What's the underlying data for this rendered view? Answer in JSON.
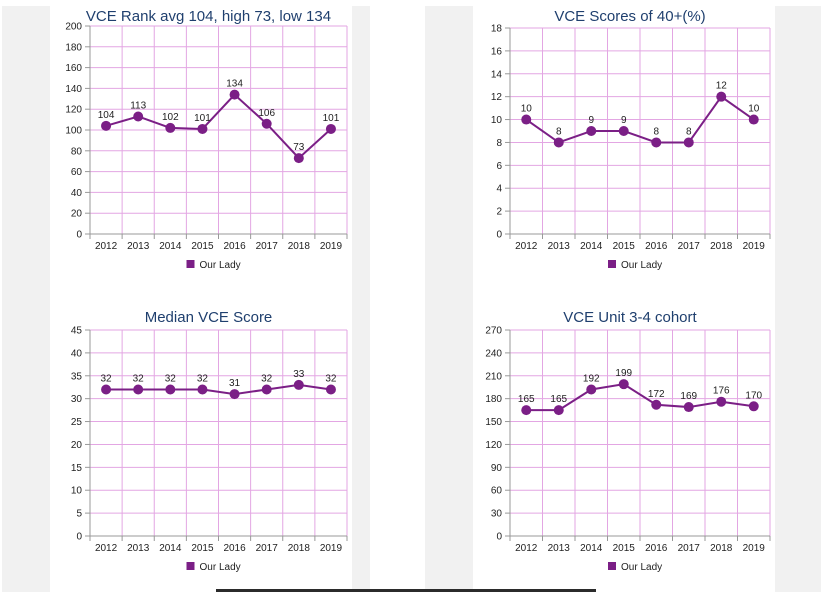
{
  "top_strip_text": "",
  "colors": {
    "line": "#7b1f86",
    "grid": "#e3a6e3",
    "axis": "#999999",
    "title": "#1f3f6e"
  },
  "chart_data": [
    {
      "type": "line",
      "title": "VCE Rank avg 104, high 73, low 134",
      "categories": [
        "2012",
        "2013",
        "2014",
        "2015",
        "2016",
        "2017",
        "2018",
        "2019"
      ],
      "series": [
        {
          "name": "Our Lady",
          "values": [
            104,
            113,
            102,
            101,
            134,
            106,
            73,
            101
          ]
        }
      ],
      "ylim": [
        0,
        200
      ],
      "yticks": [
        0,
        20,
        40,
        60,
        80,
        100,
        120,
        140,
        160,
        180,
        200
      ],
      "grid": true,
      "legend": "bottom"
    },
    {
      "type": "line",
      "title": "VCE Scores of 40+(%)",
      "categories": [
        "2012",
        "2013",
        "2014",
        "2015",
        "2016",
        "2017",
        "2018",
        "2019"
      ],
      "series": [
        {
          "name": "Our Lady",
          "values": [
            10,
            8,
            9,
            9,
            8,
            8,
            12,
            10
          ]
        }
      ],
      "ylim": [
        0,
        18
      ],
      "yticks": [
        0,
        2,
        4,
        6,
        8,
        10,
        12,
        14,
        16,
        18
      ],
      "grid": true,
      "legend": "bottom"
    },
    {
      "type": "line",
      "title": "Median VCE Score",
      "categories": [
        "2012",
        "2013",
        "2014",
        "2015",
        "2016",
        "2017",
        "2018",
        "2019"
      ],
      "series": [
        {
          "name": "Our Lady",
          "values": [
            32,
            32,
            32,
            32,
            31,
            32,
            33,
            32
          ]
        }
      ],
      "ylim": [
        0,
        45
      ],
      "yticks": [
        0,
        5,
        10,
        15,
        20,
        25,
        30,
        35,
        40,
        45
      ],
      "grid": true,
      "legend": "bottom"
    },
    {
      "type": "line",
      "title": "VCE Unit 3-4 cohort",
      "categories": [
        "2012",
        "2013",
        "2014",
        "2015",
        "2016",
        "2017",
        "2018",
        "2019"
      ],
      "series": [
        {
          "name": "Our Lady",
          "values": [
            165,
            165,
            192,
            199,
            172,
            169,
            176,
            170
          ]
        }
      ],
      "ylim": [
        0,
        270
      ],
      "yticks": [
        0,
        30,
        60,
        90,
        120,
        150,
        180,
        210,
        240,
        270
      ],
      "grid": true,
      "legend": "bottom"
    }
  ]
}
